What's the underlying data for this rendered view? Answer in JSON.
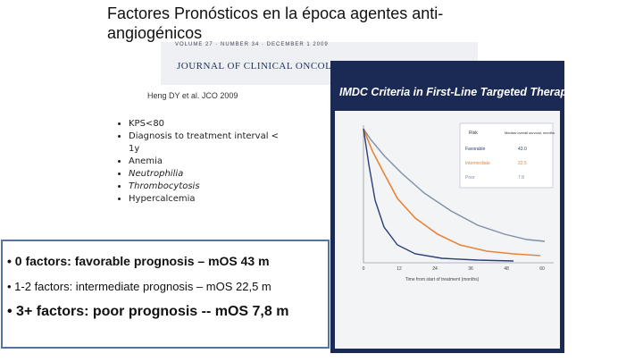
{
  "slide": {
    "title": "Factores Pronósticos en la época agentes anti-angiogénicos",
    "journal": {
      "issue": "VOLUME 27 · NUMBER 34 · DECEMBER 1 2009",
      "name": "JOURNAL OF CLINICAL ONCOLOGY"
    },
    "citation": "Heng DY et al. JCO 2009",
    "factors": [
      "KPS<80",
      "Diagnosis to treatment interval < 1y",
      "Anemia",
      "Neutrophilia",
      "Thrombocytosis",
      "Hypercalcemia"
    ],
    "summary": [
      "• 0 factors: favorable prognosis – mOS 43 m",
      "• 1-2 factors: intermediate prognosis – mOS 22,5 m",
      "• 3+ factors: poor prognosis -- mOS 7,8 m"
    ],
    "figure": {
      "title": "IMDC Criteria in First-Line Targeted Therapy",
      "table_header": [
        "Risk",
        "Median overall survival, months"
      ],
      "table_rows": [
        [
          "Favorable",
          "43.0"
        ],
        [
          "Intermediate",
          "22.5"
        ],
        [
          "Poor",
          "7.8"
        ]
      ],
      "x_ticks": [
        "0",
        "12",
        "24",
        "36",
        "48",
        "60"
      ],
      "x_label": "Time from start of treatment (months)"
    }
  }
}
